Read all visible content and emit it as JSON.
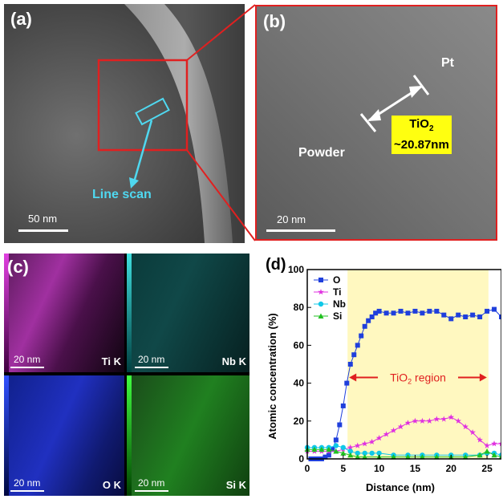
{
  "panels": {
    "a": {
      "label": "(a)",
      "scale": "50 nm",
      "line_scan": "Line scan"
    },
    "b": {
      "label": "(b)",
      "scale": "20 nm",
      "pt": "Pt",
      "powder": "Powder",
      "tio2": "TiO",
      "tio2_sub": "2",
      "thickness": "~20.87nm"
    },
    "c": {
      "label": "(c)",
      "maps": [
        {
          "element": "Ti K",
          "scale": "20 nm",
          "color": "#c030c0"
        },
        {
          "element": "Nb K",
          "scale": "20 nm",
          "color": "#30c0c0"
        },
        {
          "element": "O K",
          "scale": "20 nm",
          "color": "#3040e0"
        },
        {
          "element": "Si K",
          "scale": "20 nm",
          "color": "#40c040"
        }
      ]
    }
  },
  "chart_data": {
    "type": "line",
    "label": "(d)",
    "xlabel": "Distance (nm)",
    "ylabel": "Atomic concentration (%)",
    "xlim": [
      0,
      27
    ],
    "ylim": [
      0,
      100
    ],
    "xticks": [
      "0",
      "5",
      "10",
      "15",
      "20",
      "25"
    ],
    "yticks": [
      "0",
      "20",
      "40",
      "60",
      "80",
      "100"
    ],
    "region": {
      "x_start": 5.6,
      "x_end": 25.2,
      "label": "TiO",
      "label_sub": "2",
      "label_suffix": " region",
      "color": "#fff8c0"
    },
    "series": [
      {
        "name": "O",
        "color": "#1f3fdc",
        "marker": "square",
        "x": [
          0.5,
          1,
          1.5,
          2,
          2.5,
          3,
          3.5,
          4,
          4.5,
          5,
          5.5,
          6,
          6.5,
          7,
          7.5,
          8,
          8.5,
          9,
          9.5,
          10,
          11,
          12,
          13,
          14,
          15,
          16,
          17,
          18,
          19,
          20,
          21,
          22,
          23,
          24,
          25,
          26,
          27
        ],
        "y": [
          0,
          0,
          0,
          0,
          1,
          2,
          5,
          10,
          18,
          28,
          40,
          50,
          55,
          60,
          65,
          70,
          73,
          75,
          77,
          78,
          77,
          77,
          78,
          77,
          78,
          77,
          78,
          78,
          76,
          74,
          76,
          75,
          76,
          75,
          78,
          79,
          75
        ]
      },
      {
        "name": "Ti",
        "color": "#e030e0",
        "marker": "star",
        "x": [
          0,
          1,
          2,
          3,
          4,
          5,
          6,
          7,
          8,
          9,
          10,
          11,
          12,
          13,
          14,
          15,
          16,
          17,
          18,
          19,
          20,
          21,
          22,
          23,
          24,
          25,
          26,
          27
        ],
        "y": [
          4,
          4,
          4,
          4,
          4,
          5,
          6,
          7,
          8,
          9,
          11,
          13,
          15,
          17,
          19,
          20,
          20,
          20,
          21,
          21,
          22,
          20,
          17,
          14,
          10,
          7,
          8,
          8
        ]
      },
      {
        "name": "Nb",
        "color": "#10c8e8",
        "marker": "circle",
        "x": [
          0,
          1,
          2,
          3,
          4,
          5,
          6,
          7,
          8,
          9,
          10,
          12,
          14,
          16,
          18,
          20,
          22,
          24,
          25,
          26,
          27
        ],
        "y": [
          6,
          6,
          6,
          6,
          7,
          6,
          4,
          3,
          3,
          3,
          3,
          2,
          2,
          2,
          2,
          2,
          2,
          2,
          3,
          3,
          2
        ]
      },
      {
        "name": "Si",
        "color": "#20c020",
        "marker": "triangle",
        "x": [
          0,
          1,
          2,
          3,
          4,
          5,
          6,
          7,
          8,
          10,
          12,
          14,
          16,
          18,
          20,
          22,
          24,
          25,
          26,
          27
        ],
        "y": [
          5,
          5,
          5,
          5,
          4,
          3,
          2,
          1,
          1,
          1,
          1,
          1,
          1,
          1,
          1,
          1,
          2,
          4,
          2,
          1
        ]
      }
    ]
  }
}
